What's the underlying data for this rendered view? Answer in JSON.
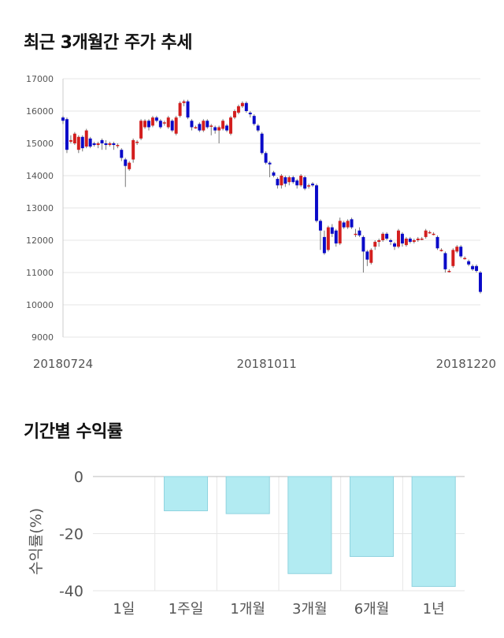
{
  "section1": {
    "title": "최근 3개월간 주가 추세"
  },
  "section2": {
    "title": "기간별 수익률"
  },
  "colors": {
    "up": "#d31e1e",
    "down": "#0a0ac8",
    "bar": "#b2ebf2",
    "bar_border": "#8fd3df",
    "grid": "#e6e6e6"
  },
  "chart_data": [
    {
      "type": "candlestick",
      "title": "최근 3개월간 주가 추세",
      "ylim": [
        9000,
        17000
      ],
      "y_ticks": [
        "17000",
        "16000",
        "15000",
        "14000",
        "13000",
        "12000",
        "11000",
        "10000",
        "9000"
      ],
      "x_ticks": [
        "20180724",
        "20181011",
        "20181220"
      ],
      "candles": [
        [
          15800,
          15700,
          15850,
          15600
        ],
        [
          15750,
          14800,
          15800,
          14700
        ],
        [
          15050,
          15100,
          15250,
          15000
        ],
        [
          15000,
          15300,
          15350,
          14950
        ],
        [
          14800,
          15200,
          15250,
          14700
        ],
        [
          15200,
          14850,
          15250,
          14750
        ],
        [
          14900,
          15400,
          15450,
          14850
        ],
        [
          15150,
          14900,
          15200,
          14850
        ],
        [
          15000,
          14950,
          15050,
          14900
        ],
        [
          14950,
          15000,
          15050,
          14850
        ],
        [
          15100,
          15000,
          15150,
          14800
        ],
        [
          15000,
          14950,
          15100,
          14800
        ],
        [
          14950,
          15000,
          15050,
          14900
        ],
        [
          15000,
          14950,
          15050,
          14800
        ],
        [
          14950,
          14950,
          15000,
          14850
        ],
        [
          14800,
          14550,
          14850,
          14450
        ],
        [
          14500,
          14300,
          14550,
          13650
        ],
        [
          14200,
          14400,
          14450,
          14150
        ],
        [
          14500,
          15100,
          15150,
          14400
        ],
        [
          15050,
          15050,
          15100,
          14950
        ],
        [
          15150,
          15700,
          15750,
          15100
        ],
        [
          15500,
          15700,
          15750,
          15450
        ],
        [
          15700,
          15500,
          15750,
          15400
        ],
        [
          15550,
          15800,
          15850,
          15500
        ],
        [
          15800,
          15700,
          15850,
          15650
        ],
        [
          15700,
          15500,
          15750,
          15450
        ],
        [
          15650,
          15650,
          15700,
          15550
        ],
        [
          15500,
          15800,
          15850,
          15450
        ],
        [
          15700,
          15400,
          15750,
          15350
        ],
        [
          15300,
          15800,
          15850,
          15250
        ],
        [
          15850,
          16250,
          16300,
          15800
        ],
        [
          16250,
          16300,
          16350,
          16150
        ],
        [
          16300,
          15800,
          16350,
          15750
        ],
        [
          15700,
          15500,
          15750,
          15400
        ],
        [
          15500,
          15500,
          15550,
          15450
        ],
        [
          15600,
          15400,
          15650,
          15350
        ],
        [
          15400,
          15700,
          15750,
          15350
        ],
        [
          15700,
          15500,
          15750,
          15450
        ],
        [
          15550,
          15550,
          15600,
          15250
        ],
        [
          15500,
          15400,
          15550,
          15300
        ],
        [
          15400,
          15500,
          15550,
          15000
        ],
        [
          15450,
          15700,
          15750,
          15400
        ],
        [
          15550,
          15400,
          15600,
          15350
        ],
        [
          15300,
          15800,
          15850,
          15250
        ],
        [
          15800,
          16000,
          16050,
          15750
        ],
        [
          15950,
          16150,
          16200,
          15900
        ],
        [
          16150,
          16250,
          16300,
          16100
        ],
        [
          16250,
          16000,
          16300,
          15950
        ],
        [
          15950,
          15900,
          16000,
          15800
        ],
        [
          15850,
          15600,
          15900,
          15550
        ],
        [
          15550,
          15400,
          15600,
          15350
        ],
        [
          15300,
          14700,
          15350,
          14650
        ],
        [
          14700,
          14400,
          14750,
          14350
        ],
        [
          14400,
          14350,
          14450,
          13950
        ],
        [
          14100,
          14000,
          14150,
          13950
        ],
        [
          13900,
          13700,
          13950,
          13600
        ],
        [
          13700,
          14000,
          14050,
          13600
        ],
        [
          13950,
          13750,
          14000,
          13650
        ],
        [
          13800,
          13950,
          14000,
          13700
        ],
        [
          13950,
          13800,
          14000,
          13750
        ],
        [
          13850,
          13700,
          13900,
          13600
        ],
        [
          13700,
          14000,
          14050,
          13650
        ],
        [
          13950,
          13600,
          14000,
          13550
        ],
        [
          13700,
          13700,
          13750,
          13600
        ],
        [
          13750,
          13700,
          13800,
          13650
        ],
        [
          13700,
          12600,
          13750,
          12550
        ],
        [
          12600,
          12300,
          12650,
          11700
        ],
        [
          12100,
          11600,
          12300,
          11550
        ],
        [
          11700,
          12400,
          12450,
          11650
        ],
        [
          12400,
          12200,
          12500,
          12100
        ],
        [
          12300,
          11900,
          12350,
          11800
        ],
        [
          11900,
          12600,
          12700,
          11850
        ],
        [
          12550,
          12400,
          12600,
          12350
        ],
        [
          12400,
          12600,
          12650,
          12350
        ],
        [
          12650,
          12400,
          12700,
          12350
        ],
        [
          12200,
          12200,
          12350,
          12100
        ],
        [
          12300,
          12150,
          12400,
          12100
        ],
        [
          12100,
          11650,
          12150,
          11000
        ],
        [
          11650,
          11400,
          11700,
          11200
        ],
        [
          11300,
          11700,
          11750,
          11250
        ],
        [
          11800,
          11950,
          12000,
          11700
        ],
        [
          11950,
          12000,
          12050,
          11800
        ],
        [
          12000,
          12200,
          12250,
          11950
        ],
        [
          12200,
          12050,
          12250,
          12000
        ],
        [
          12000,
          11950,
          12050,
          11850
        ],
        [
          11900,
          11800,
          11950,
          11700
        ],
        [
          11800,
          12300,
          12350,
          11750
        ],
        [
          12200,
          11900,
          12250,
          11800
        ],
        [
          11850,
          12050,
          12100,
          11800
        ],
        [
          12050,
          11950,
          12100,
          11900
        ],
        [
          11950,
          12000,
          12050,
          11900
        ],
        [
          12000,
          12050,
          12100,
          11950
        ],
        [
          12050,
          12050,
          12100,
          12000
        ],
        [
          12100,
          12300,
          12350,
          12050
        ],
        [
          12250,
          12250,
          12300,
          12200
        ],
        [
          12200,
          12200,
          12250,
          12150
        ],
        [
          12100,
          11750,
          12150,
          11700
        ],
        [
          11700,
          11700,
          11750,
          11650
        ],
        [
          11600,
          11100,
          11650,
          11000
        ],
        [
          11050,
          11050,
          11100,
          11000
        ],
        [
          11200,
          11700,
          11750,
          11150
        ],
        [
          11650,
          11800,
          11850,
          11600
        ],
        [
          11800,
          11500,
          11850,
          11450
        ],
        [
          11450,
          11450,
          11500,
          11400
        ],
        [
          11350,
          11250,
          11400,
          11200
        ],
        [
          11200,
          11100,
          11250,
          11050
        ],
        [
          11200,
          11050,
          11250,
          11000
        ],
        [
          11000,
          10400,
          11050,
          10350
        ]
      ]
    },
    {
      "type": "bar",
      "title": "기간별 수익률",
      "ylabel": "수익률(%)",
      "ylim": [
        -40,
        0
      ],
      "y_ticks": [
        "0",
        "-20",
        "-40"
      ],
      "categories": [
        "1일",
        "1주일",
        "1개월",
        "3개월",
        "6개월",
        "1년"
      ],
      "values": [
        0,
        -12,
        -13,
        -34,
        -28,
        -38.5
      ]
    }
  ]
}
